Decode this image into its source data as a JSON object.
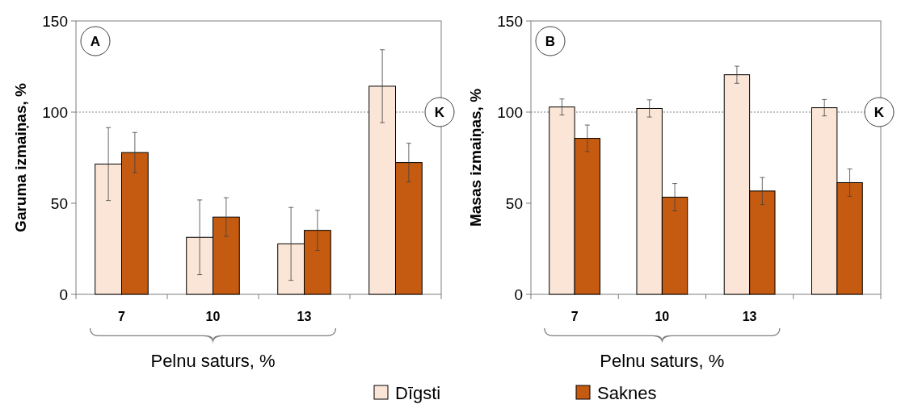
{
  "chart_data": [
    {
      "type": "bar",
      "annotations": [
        "A"
      ],
      "ylabel": "Garuma izmaiņas, %",
      "xlabel": "Pelnu saturs, %",
      "categories": [
        "7",
        "10",
        "13",
        null
      ],
      "ylim": [
        0,
        150
      ],
      "yticks": [
        0,
        50,
        100,
        150
      ],
      "grid": false,
      "legend": "bottom",
      "ref_lines": [
        {
          "axis": "y",
          "value": 100,
          "label": "K",
          "color": "#808080",
          "line_style": "dotted"
        }
      ],
      "series": [
        {
          "name": "Dīgsti",
          "color": "#fbe5d6",
          "values": [
            71.5,
            31.3,
            27.7,
            114.2
          ],
          "errors": [
            20,
            20.5,
            20,
            20
          ]
        },
        {
          "name": "Saknes",
          "color": "#c55a11",
          "values": [
            77.8,
            42.4,
            35.1,
            72.3
          ],
          "errors": [
            11,
            10.6,
            11,
            10.6
          ]
        }
      ]
    },
    {
      "type": "bar",
      "annotations": [
        "B"
      ],
      "ylabel": "Masas izmaiņas, %",
      "xlabel": "Pelnu saturs, %",
      "categories": [
        "7",
        "10",
        "13",
        null
      ],
      "ylim": [
        0,
        150
      ],
      "yticks": [
        0,
        50,
        100,
        150
      ],
      "grid": false,
      "ref_lines": [
        {
          "axis": "y",
          "value": 100,
          "label": "K",
          "color": "#808080",
          "line_style": "dotted"
        }
      ],
      "series": [
        {
          "name": "Dīgsti",
          "color": "#fbe5d6",
          "values": [
            102.8,
            102,
            120.5,
            102.4
          ],
          "errors": [
            4.4,
            4.7,
            4.7,
            4.5
          ]
        },
        {
          "name": "Saknes",
          "color": "#c55a11",
          "values": [
            85.6,
            53.3,
            56.7,
            61.3
          ],
          "errors": [
            7.3,
            7.5,
            7.4,
            7.5
          ]
        }
      ]
    }
  ]
}
